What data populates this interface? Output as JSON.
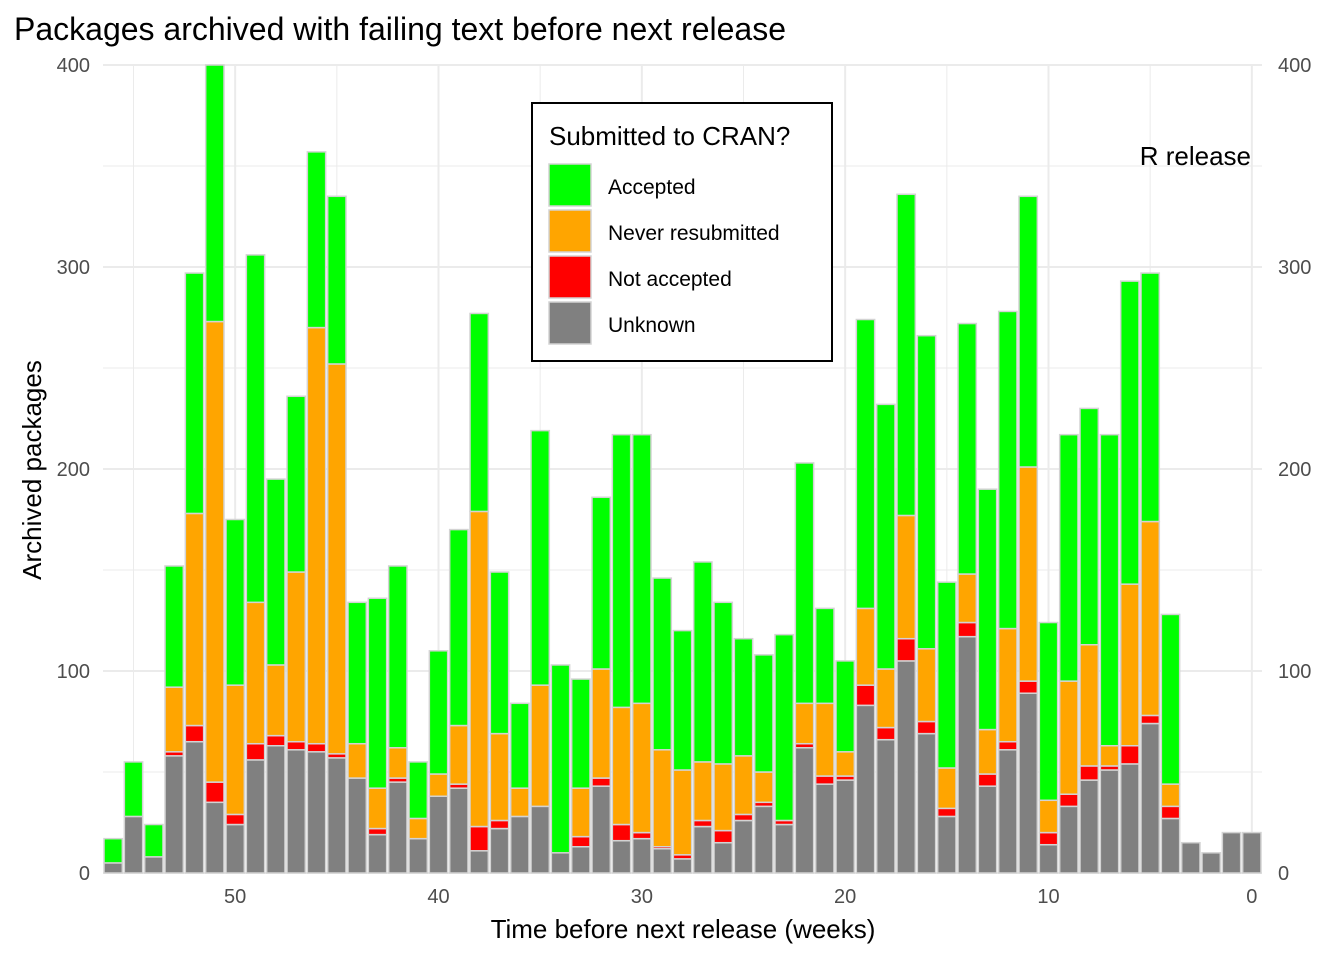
{
  "chart_data": {
    "type": "bar",
    "stacked": true,
    "title": "Packages archived with failing text before next release",
    "xlabel": "Time before next release (weeks)",
    "ylabel": "Archived packages",
    "xlim": [
      56.5,
      -0.5
    ],
    "ylim": [
      0,
      400
    ],
    "x_reversed": true,
    "x_ticks": [
      50,
      40,
      30,
      20,
      10,
      0
    ],
    "y_ticks": [
      0,
      100,
      200,
      300,
      400
    ],
    "secondary_y_axis": true,
    "grid": true,
    "annotation": "R release",
    "legend": {
      "title": "Submitted to CRAN?",
      "position": "top-center",
      "entries": [
        "Accepted",
        "Never resubmitted",
        "Not accepted",
        "Unknown"
      ]
    },
    "x": [
      56,
      55,
      54,
      53,
      52,
      51,
      50,
      49,
      48,
      47,
      46,
      45,
      44,
      43,
      42,
      41,
      40,
      39,
      38,
      37,
      36,
      35,
      34,
      33,
      32,
      31,
      30,
      29,
      28,
      27,
      26,
      25,
      24,
      23,
      22,
      21,
      20,
      19,
      18,
      17,
      16,
      15,
      14,
      13,
      12,
      11,
      10,
      9,
      8,
      7,
      6,
      5,
      4,
      3,
      2,
      1,
      0
    ],
    "series": [
      {
        "name": "Unknown",
        "color": "#808080",
        "values": [
          5,
          28,
          8,
          58,
          65,
          35,
          24,
          56,
          63,
          61,
          60,
          57,
          47,
          19,
          45,
          17,
          38,
          42,
          11,
          22,
          28,
          33,
          10,
          13,
          43,
          16,
          17,
          12,
          7,
          23,
          15,
          26,
          33,
          24,
          62,
          44,
          46,
          83,
          66,
          105,
          69,
          28,
          117,
          43,
          61,
          89,
          14,
          33,
          46,
          51,
          54,
          74,
          27,
          15,
          10,
          20,
          20
        ]
      },
      {
        "name": "Not accepted",
        "color": "#ff0000",
        "values": [
          0,
          0,
          0,
          2,
          8,
          10,
          5,
          8,
          5,
          4,
          4,
          2,
          0,
          3,
          2,
          0,
          0,
          2,
          12,
          4,
          0,
          0,
          0,
          5,
          4,
          8,
          3,
          1,
          2,
          3,
          6,
          3,
          2,
          2,
          2,
          4,
          2,
          10,
          6,
          11,
          6,
          4,
          7,
          6,
          4,
          6,
          6,
          6,
          7,
          2,
          9,
          4,
          6,
          0,
          0,
          0,
          0
        ]
      },
      {
        "name": "Never resubmitted",
        "color": "#ffa500",
        "values": [
          0,
          0,
          0,
          32,
          105,
          228,
          64,
          70,
          35,
          84,
          206,
          193,
          17,
          20,
          15,
          10,
          11,
          29,
          156,
          43,
          14,
          60,
          0,
          24,
          54,
          58,
          64,
          48,
          42,
          29,
          33,
          29,
          15,
          0,
          20,
          36,
          12,
          38,
          29,
          61,
          36,
          20,
          24,
          22,
          56,
          106,
          16,
          56,
          60,
          10,
          80,
          96,
          11,
          0,
          0,
          0,
          0
        ]
      },
      {
        "name": "Accepted",
        "color": "#00ff00",
        "values": [
          12,
          27,
          16,
          60,
          119,
          127,
          82,
          172,
          92,
          87,
          87,
          83,
          70,
          94,
          90,
          28,
          61,
          97,
          98,
          80,
          42,
          126,
          93,
          54,
          85,
          135,
          133,
          85,
          69,
          99,
          80,
          58,
          58,
          92,
          119,
          47,
          45,
          143,
          131,
          159,
          155,
          92,
          124,
          119,
          157,
          134,
          88,
          122,
          117,
          154,
          150,
          123,
          84,
          0,
          0,
          0,
          0
        ]
      }
    ]
  }
}
